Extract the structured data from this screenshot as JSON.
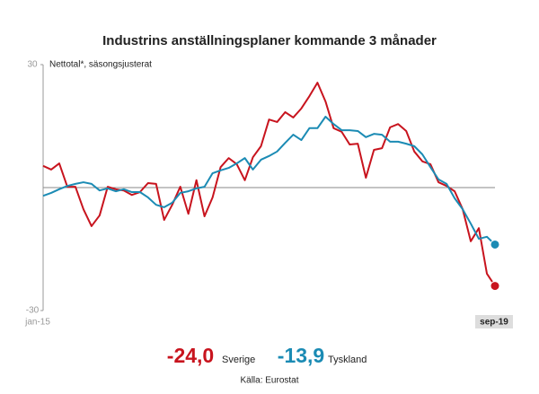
{
  "chart_data": {
    "type": "line",
    "title": "Industrins anställningsplaner kommande 3 månader",
    "y_label": "Nettotal*, säsongsjusterat",
    "source": "Källa: Eurostat",
    "categories": [
      "jan-15",
      null,
      null,
      null,
      null,
      null,
      null,
      null,
      null,
      null,
      null,
      null,
      null,
      null,
      null,
      null,
      null,
      null,
      null,
      null,
      null,
      null,
      null,
      null,
      null,
      null,
      null,
      null,
      null,
      null,
      null,
      null,
      null,
      null,
      null,
      null,
      null,
      null,
      null,
      null,
      null,
      null,
      null,
      null,
      null,
      null,
      null,
      null,
      null,
      null,
      null,
      null,
      null,
      null,
      null,
      null,
      "sep-19"
    ],
    "ylim": [
      -30,
      30
    ],
    "yticks": [
      -30,
      30
    ],
    "series": [
      {
        "name": "Sverige",
        "color": "#c8141e",
        "value_label": "-24,0",
        "values": [
          5.3,
          4.4,
          5.9,
          0.2,
          0.2,
          -5.3,
          -9.4,
          -6.8,
          0.2,
          -0.4,
          -0.7,
          -1.8,
          -1.1,
          1.1,
          0.9,
          -7.9,
          -4.2,
          0.2,
          -6.4,
          1.8,
          -7.0,
          -2.4,
          5.0,
          7.2,
          5.7,
          1.8,
          7.4,
          10.1,
          16.6,
          16.0,
          18.4,
          17.1,
          19.3,
          22.3,
          25.6,
          21.0,
          14.5,
          13.6,
          10.5,
          10.7,
          2.4,
          9.2,
          9.6,
          14.7,
          15.5,
          13.8,
          8.8,
          6.4,
          5.7,
          1.3,
          0.4,
          -0.9,
          -5.3,
          -13.1,
          -9.9,
          -21.0,
          -24.0
        ]
      },
      {
        "name": "Tyskland",
        "color": "#1b8bb4",
        "value_label": "-13,9",
        "values": [
          -2.0,
          -1.3,
          -0.4,
          0.4,
          0.9,
          1.3,
          0.9,
          -0.7,
          -0.2,
          -0.9,
          -0.4,
          -1.1,
          -1.1,
          -2.4,
          -4.2,
          -4.8,
          -3.7,
          -1.3,
          -0.9,
          -0.2,
          0.2,
          3.5,
          4.2,
          4.8,
          5.9,
          7.2,
          4.4,
          6.8,
          7.7,
          8.8,
          10.9,
          12.9,
          11.6,
          14.5,
          14.5,
          17.3,
          15.5,
          14.0,
          14.0,
          13.8,
          12.3,
          13.1,
          12.9,
          11.2,
          11.2,
          10.7,
          10.1,
          8.1,
          5.0,
          2.0,
          0.9,
          -2.6,
          -5.3,
          -8.8,
          -12.5,
          -12.0,
          -13.9
        ]
      }
    ]
  }
}
